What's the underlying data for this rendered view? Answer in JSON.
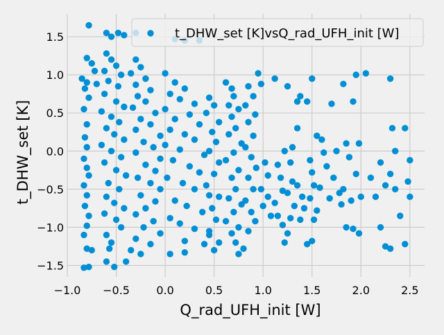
{
  "chart_data": {
    "type": "scatter",
    "title": "",
    "xlabel": "Q_rad_UFH_init [W]",
    "ylabel": "t_DHW_set [K]",
    "xlim": [
      -1.0,
      2.65
    ],
    "ylim": [
      -1.65,
      1.8
    ],
    "xticks": [
      -1.0,
      -0.5,
      0.0,
      0.5,
      1.0,
      1.5,
      2.0,
      2.5
    ],
    "xtick_labels": [
      "−1.0",
      "−0.5",
      "0.0",
      "0.5",
      "1.0",
      "1.5",
      "2.0",
      "2.5"
    ],
    "yticks": [
      -1.5,
      -1.0,
      -0.5,
      0.0,
      0.5,
      1.0,
      1.5
    ],
    "ytick_labels": [
      "−1.5",
      "−1.0",
      "−0.5",
      "0.0",
      "0.5",
      "1.0",
      "1.5"
    ],
    "grid": true,
    "legend_position": "upper-right",
    "marker_color": "#008fd5",
    "series": [
      {
        "name": "t_DHW_set [K]vsQ_rad_UFH_init [W]",
        "points": [
          [
            -0.78,
            1.65
          ],
          [
            -0.6,
            1.55
          ],
          [
            -0.55,
            1.5
          ],
          [
            -0.48,
            1.55
          ],
          [
            -0.42,
            1.52
          ],
          [
            -0.3,
            1.55
          ],
          [
            0.1,
            1.47
          ],
          [
            0.2,
            1.45
          ],
          [
            -0.8,
            1.22
          ],
          [
            -0.75,
            1.15
          ],
          [
            -0.72,
            1.05
          ],
          [
            -0.85,
            0.95
          ],
          [
            -0.8,
            0.9
          ],
          [
            -0.82,
            0.82
          ],
          [
            -0.7,
            0.88
          ],
          [
            -0.78,
            0.7
          ],
          [
            -0.83,
            0.55
          ],
          [
            -0.8,
            0.35
          ],
          [
            -0.82,
            0.18
          ],
          [
            -0.8,
            0.05
          ],
          [
            -0.83,
            -0.1
          ],
          [
            -0.8,
            -0.22
          ],
          [
            -0.78,
            -0.32
          ],
          [
            -0.83,
            -0.45
          ],
          [
            -0.8,
            -0.58
          ],
          [
            -0.82,
            -0.72
          ],
          [
            -0.78,
            -0.85
          ],
          [
            -0.8,
            -0.98
          ],
          [
            -0.83,
            -1.1
          ],
          [
            -0.8,
            -1.28
          ],
          [
            -0.75,
            -1.3
          ],
          [
            -0.83,
            -1.53
          ],
          [
            -0.78,
            -1.52
          ],
          [
            -0.6,
            1.28
          ],
          [
            -0.55,
            1.2
          ],
          [
            -0.5,
            1.12
          ],
          [
            -0.62,
            1.05
          ],
          [
            -0.45,
            1.0
          ],
          [
            -0.58,
            0.92
          ],
          [
            -0.48,
            0.85
          ],
          [
            -0.62,
            0.75
          ],
          [
            -0.5,
            0.65
          ],
          [
            -0.42,
            0.58
          ],
          [
            -0.65,
            0.52
          ],
          [
            -0.55,
            0.45
          ],
          [
            -0.47,
            0.38
          ],
          [
            -0.6,
            0.3
          ],
          [
            -0.52,
            0.22
          ],
          [
            -0.42,
            0.15
          ],
          [
            -0.65,
            0.08
          ],
          [
            -0.55,
            0.0
          ],
          [
            -0.45,
            -0.08
          ],
          [
            -0.62,
            -0.15
          ],
          [
            -0.5,
            -0.25
          ],
          [
            -0.4,
            -0.32
          ],
          [
            -0.58,
            -0.42
          ],
          [
            -0.47,
            -0.5
          ],
          [
            -0.6,
            -0.6
          ],
          [
            -0.52,
            -0.68
          ],
          [
            -0.42,
            -0.75
          ],
          [
            -0.62,
            -0.82
          ],
          [
            -0.5,
            -0.9
          ],
          [
            -0.45,
            -1.0
          ],
          [
            -0.6,
            -1.1
          ],
          [
            -0.55,
            -1.2
          ],
          [
            -0.57,
            -1.28
          ],
          [
            -0.6,
            -1.45
          ],
          [
            -0.52,
            -1.52
          ],
          [
            -0.3,
            1.2
          ],
          [
            -0.25,
            1.1
          ],
          [
            -0.35,
            1.02
          ],
          [
            -0.2,
            0.95
          ],
          [
            -0.3,
            0.87
          ],
          [
            -0.15,
            0.8
          ],
          [
            -0.28,
            0.72
          ],
          [
            -0.2,
            0.65
          ],
          [
            -0.33,
            0.57
          ],
          [
            -0.1,
            0.5
          ],
          [
            -0.25,
            0.42
          ],
          [
            -0.15,
            0.35
          ],
          [
            -0.3,
            0.28
          ],
          [
            -0.05,
            0.2
          ],
          [
            -0.22,
            0.12
          ],
          [
            -0.12,
            0.05
          ],
          [
            -0.3,
            -0.02
          ],
          [
            -0.05,
            -0.1
          ],
          [
            -0.2,
            -0.18
          ],
          [
            -0.1,
            -0.26
          ],
          [
            -0.28,
            -0.35
          ],
          [
            -0.15,
            -0.42
          ],
          [
            -0.05,
            -0.5
          ],
          [
            -0.25,
            -0.58
          ],
          [
            -0.1,
            -0.66
          ],
          [
            -0.2,
            -0.75
          ],
          [
            -0.3,
            -0.83
          ],
          [
            -0.12,
            -0.92
          ],
          [
            -0.22,
            -1.0
          ],
          [
            -0.05,
            -1.08
          ],
          [
            -0.3,
            -1.15
          ],
          [
            -0.15,
            -1.22
          ],
          [
            -0.35,
            -1.3
          ],
          [
            -0.25,
            -1.35
          ],
          [
            -0.4,
            -1.45
          ],
          [
            0.0,
            1.02
          ],
          [
            0.1,
            0.9
          ],
          [
            0.2,
            0.82
          ],
          [
            0.05,
            0.75
          ],
          [
            0.15,
            0.68
          ],
          [
            0.3,
            0.62
          ],
          [
            0.0,
            0.55
          ],
          [
            0.25,
            0.48
          ],
          [
            0.1,
            0.42
          ],
          [
            0.35,
            0.35
          ],
          [
            0.05,
            0.28
          ],
          [
            0.2,
            0.22
          ],
          [
            0.3,
            0.15
          ],
          [
            0.0,
            0.08
          ],
          [
            0.15,
            0.02
          ],
          [
            0.4,
            -0.05
          ],
          [
            0.08,
            -0.12
          ],
          [
            0.25,
            -0.2
          ],
          [
            0.35,
            -0.28
          ],
          [
            0.02,
            -0.35
          ],
          [
            0.18,
            -0.42
          ],
          [
            0.3,
            -0.5
          ],
          [
            0.45,
            -0.58
          ],
          [
            0.1,
            -0.65
          ],
          [
            0.22,
            -0.72
          ],
          [
            0.38,
            -0.8
          ],
          [
            0.05,
            -0.88
          ],
          [
            0.15,
            -0.95
          ],
          [
            0.3,
            -1.02
          ],
          [
            0.45,
            -1.1
          ],
          [
            0.2,
            -1.18
          ],
          [
            0.4,
            -1.22
          ],
          [
            0.05,
            -1.35
          ],
          [
            0.2,
            -1.33
          ],
          [
            0.35,
            1.45
          ],
          [
            0.45,
            0.7
          ],
          [
            0.5,
            0.6
          ],
          [
            0.42,
            0.5
          ],
          [
            0.55,
            0.38
          ],
          [
            0.48,
            0.25
          ],
          [
            0.52,
            0.12
          ],
          [
            0.45,
            0.0
          ],
          [
            0.55,
            -0.15
          ],
          [
            0.5,
            -0.3
          ],
          [
            0.42,
            -0.45
          ],
          [
            0.55,
            -0.6
          ],
          [
            0.48,
            -0.75
          ],
          [
            0.52,
            -0.9
          ],
          [
            0.45,
            -1.05
          ],
          [
            0.55,
            -1.2
          ],
          [
            0.5,
            -1.3
          ],
          [
            0.62,
            0.9
          ],
          [
            0.68,
            0.82
          ],
          [
            0.7,
            0.72
          ],
          [
            0.65,
            0.6
          ],
          [
            0.75,
            0.55
          ],
          [
            0.68,
            0.45
          ],
          [
            0.72,
            0.3
          ],
          [
            0.65,
            0.22
          ],
          [
            0.78,
            0.1
          ],
          [
            0.7,
            -0.02
          ],
          [
            0.62,
            -0.12
          ],
          [
            0.75,
            -0.25
          ],
          [
            0.68,
            -0.35
          ],
          [
            0.72,
            -0.5
          ],
          [
            0.65,
            -0.62
          ],
          [
            0.78,
            -0.7
          ],
          [
            0.7,
            -0.8
          ],
          [
            0.62,
            -0.92
          ],
          [
            0.75,
            -1.0
          ],
          [
            0.68,
            -1.08
          ],
          [
            0.72,
            -1.2
          ],
          [
            0.75,
            -1.35
          ],
          [
            0.85,
            0.85
          ],
          [
            0.9,
            0.72
          ],
          [
            0.82,
            0.6
          ],
          [
            0.92,
            0.48
          ],
          [
            0.85,
            0.38
          ],
          [
            0.9,
            0.2
          ],
          [
            0.82,
            0.05
          ],
          [
            0.88,
            -0.08
          ],
          [
            0.93,
            -0.22
          ],
          [
            0.85,
            -0.35
          ],
          [
            0.9,
            -0.5
          ],
          [
            0.82,
            -0.65
          ],
          [
            0.88,
            -0.8
          ],
          [
            0.92,
            -0.92
          ],
          [
            0.85,
            -1.05
          ],
          [
            0.8,
            -1.28
          ],
          [
            0.95,
            1.02
          ],
          [
            0.98,
            0.88
          ],
          [
            1.02,
            -0.15
          ],
          [
            1.05,
            -0.32
          ],
          [
            0.98,
            -0.5
          ],
          [
            1.05,
            -0.6
          ],
          [
            1.0,
            -0.72
          ],
          [
            1.08,
            -0.85
          ],
          [
            1.12,
            0.95
          ],
          [
            1.15,
            -0.18
          ],
          [
            1.18,
            -0.35
          ],
          [
            1.2,
            -0.52
          ],
          [
            1.12,
            -0.68
          ],
          [
            1.15,
            -0.85
          ],
          [
            1.2,
            -0.97
          ],
          [
            1.22,
            -1.2
          ],
          [
            1.25,
            0.85
          ],
          [
            1.28,
            -0.15
          ],
          [
            1.3,
            -0.4
          ],
          [
            1.25,
            -0.55
          ],
          [
            1.32,
            -0.72
          ],
          [
            1.28,
            -0.88
          ],
          [
            1.25,
            -1.08
          ],
          [
            1.35,
            0.65
          ],
          [
            1.38,
            0.72
          ],
          [
            1.35,
            -0.45
          ],
          [
            1.4,
            -0.6
          ],
          [
            1.42,
            -0.75
          ],
          [
            1.38,
            -0.9
          ],
          [
            1.5,
            0.95
          ],
          [
            1.45,
            0.65
          ],
          [
            1.48,
            -0.12
          ],
          [
            1.5,
            -0.28
          ],
          [
            1.52,
            -0.45
          ],
          [
            1.48,
            -0.62
          ],
          [
            1.55,
            -0.78
          ],
          [
            1.52,
            -0.9
          ],
          [
            1.45,
            -1.22
          ],
          [
            1.5,
            -1.18
          ],
          [
            1.6,
            0.15
          ],
          [
            1.62,
            -0.02
          ],
          [
            1.58,
            -0.48
          ],
          [
            1.55,
            0.2
          ],
          [
            1.65,
            -0.2
          ],
          [
            1.68,
            -0.62
          ],
          [
            1.7,
            0.62
          ],
          [
            1.75,
            0.0
          ],
          [
            1.72,
            -0.35
          ],
          [
            1.78,
            -0.55
          ],
          [
            1.8,
            -0.7
          ],
          [
            1.82,
            0.88
          ],
          [
            1.85,
            0.1
          ],
          [
            1.88,
            -0.08
          ],
          [
            1.82,
            -0.5
          ],
          [
            1.85,
            -1.0
          ],
          [
            1.9,
            -0.65
          ],
          [
            1.95,
            1.0
          ],
          [
            1.92,
            0.65
          ],
          [
            1.98,
            0.1
          ],
          [
            1.95,
            -0.3
          ],
          [
            2.0,
            -0.6
          ],
          [
            1.92,
            -1.02
          ],
          [
            1.98,
            -1.08
          ],
          [
            2.05,
            1.02
          ],
          [
            2.1,
            -0.35
          ],
          [
            2.15,
            -0.6
          ],
          [
            2.2,
            -0.15
          ],
          [
            2.25,
            -0.45
          ],
          [
            2.2,
            -1.0
          ],
          [
            2.25,
            -1.25
          ],
          [
            2.3,
            0.95
          ],
          [
            2.32,
            0.3
          ],
          [
            2.3,
            -0.3
          ],
          [
            2.35,
            -0.5
          ],
          [
            2.4,
            -0.85
          ],
          [
            2.45,
            0.3
          ],
          [
            2.5,
            -0.12
          ],
          [
            2.48,
            -0.4
          ],
          [
            2.5,
            -0.6
          ],
          [
            2.45,
            -1.22
          ],
          [
            2.3,
            -1.28
          ],
          [
            2.35,
            0.0
          ],
          [
            1.22,
            0.0
          ],
          [
            1.3,
            0.05
          ],
          [
            1.35,
            0.3
          ]
        ]
      }
    ]
  }
}
